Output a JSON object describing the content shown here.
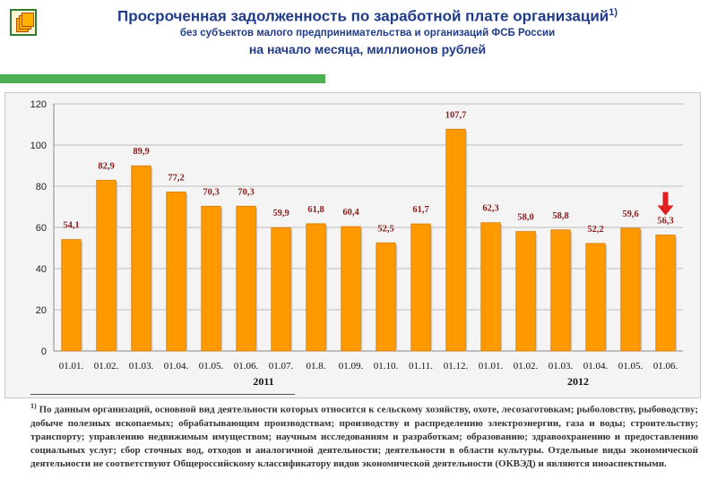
{
  "header": {
    "title": "Просроченная задолженность по заработной плате организаций",
    "title_note": "1)",
    "subtitle": "без субъектов малого предпринимательства и организаций ФСБ России",
    "subtitle2": "на начало месяца, миллионов рублей"
  },
  "chart_data": {
    "type": "bar",
    "categories": [
      "01.01.",
      "01.02.",
      "01.03.",
      "01.04.",
      "01.05.",
      "01.06.",
      "01.07.",
      "01.8.",
      "01.09.",
      "01.10.",
      "01.11.",
      "01.12.",
      "01.01.",
      "01.02.",
      "01.03.",
      "01.04.",
      "01.05.",
      "01.06."
    ],
    "values": [
      54.1,
      82.9,
      89.9,
      77.2,
      70.3,
      70.3,
      59.9,
      61.8,
      60.4,
      52.5,
      61.7,
      107.7,
      62.3,
      58.0,
      58.8,
      52.2,
      59.6,
      56.3
    ],
    "labels": [
      "54,1",
      "82,9",
      "89,9",
      "77,2",
      "70,3",
      "70,3",
      "59,9",
      "61,8",
      "60,4",
      "52,5",
      "61,7",
      "107,7",
      "62,3",
      "58,0",
      "58,8",
      "52,2",
      "59,6",
      "56,3"
    ],
    "year_groups": [
      {
        "label": "2011",
        "start": 0,
        "end": 11
      },
      {
        "label": "2012",
        "start": 12,
        "end": 17
      }
    ],
    "ylim": [
      0,
      120
    ],
    "yticks": [
      0,
      20,
      40,
      60,
      80,
      100,
      120
    ],
    "grid": true,
    "bar_color": "#ff9900",
    "label_color": "#8b1a1a",
    "arrow_color": "#e02020"
  },
  "footnote": {
    "marker": "1)",
    "text": "По данным организаций, основной вид деятельности которых относится к сельскому хозяйству, охоте, лесозаготовкам; рыболовству, рыбоводству; добыче полезных ископаемых; обрабатывающим производствам; производству и распределению электроэнергии, газа и воды; строительству; транспорту; управлению недвижимым имуществом; научным исследованиям и разработкам; образованию; здравоохранению и предоставлению социальных услуг; сбор сточных вод, отходов и аналогичной деятельности; деятельности в области культуры. Отдельные виды экономической деятельности не соответствуют Общероссийскому классификатору видов экономической деятельности (ОКВЭД) и являются иноаспектными."
  }
}
